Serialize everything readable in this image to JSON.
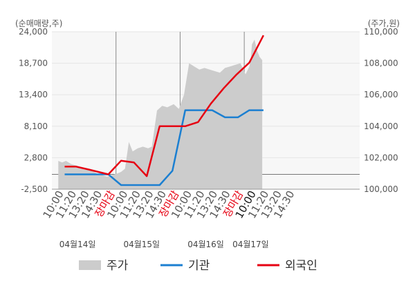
{
  "chart_data": {
    "type": "line",
    "left_unit_label": "(순매매량,주)",
    "right_unit_label": "(주가,원)",
    "left_axis": {
      "ylim": [
        -2500,
        24000
      ],
      "ticks": [
        "24,000",
        "18,700",
        "13,400",
        "8,100",
        "2,800",
        "-2,500"
      ],
      "tick_values": [
        24000,
        18700,
        13400,
        8100,
        2800,
        -2500
      ]
    },
    "right_axis": {
      "ylim": [
        100000,
        110000
      ],
      "ticks": [
        "110,000",
        "108,000",
        "106,000",
        "104,000",
        "102,000",
        "100,000"
      ],
      "tick_values": [
        110000,
        108000,
        106000,
        104000,
        102000,
        100000
      ]
    },
    "x_slots": 24,
    "x_ticks": [
      {
        "slot": 0,
        "label": "10:00",
        "color": "#555555"
      },
      {
        "slot": 1,
        "label": "11:20",
        "color": "#555555"
      },
      {
        "slot": 2,
        "label": "13:20",
        "color": "#555555"
      },
      {
        "slot": 3,
        "label": "14:30",
        "color": "#555555"
      },
      {
        "slot": 4,
        "label": "장마감",
        "color": "#e60012"
      },
      {
        "slot": 5,
        "label": "10:00",
        "color": "#555555"
      },
      {
        "slot": 6,
        "label": "11:20",
        "color": "#555555"
      },
      {
        "slot": 7,
        "label": "13:20",
        "color": "#555555"
      },
      {
        "slot": 8,
        "label": "14:30",
        "color": "#555555"
      },
      {
        "slot": 9,
        "label": "장마감",
        "color": "#e60012"
      },
      {
        "slot": 10,
        "label": "10:00",
        "color": "#555555"
      },
      {
        "slot": 11,
        "label": "11:20",
        "color": "#555555"
      },
      {
        "slot": 12,
        "label": "13:20",
        "color": "#555555"
      },
      {
        "slot": 13,
        "label": "14:30",
        "color": "#555555"
      },
      {
        "slot": 14,
        "label": "장마감",
        "color": "#e60012"
      },
      {
        "slot": 15,
        "label": "10:00",
        "color": "#111111"
      },
      {
        "slot": 16,
        "label": "11:20",
        "color": "#555555"
      },
      {
        "slot": 17,
        "label": "13:20",
        "color": "#555555"
      },
      {
        "slot": 18,
        "label": "14:30",
        "color": "#555555"
      }
    ],
    "dates": [
      {
        "label": "04월14일",
        "slot": 1.5
      },
      {
        "label": "04월15일",
        "slot": 6.5
      },
      {
        "label": "04월16일",
        "slot": 11.5
      },
      {
        "label": "04월17일",
        "slot": 15
      }
    ],
    "day_separators": [
      4.5,
      9.5,
      14.5
    ],
    "series": [
      {
        "name": "주가",
        "type": "area",
        "axis": "right",
        "color": "#cccccc",
        "x": [
          0,
          0.3,
          0.6,
          1.0,
          1.4,
          1.8,
          2.2,
          2.6,
          3.0,
          3.4,
          3.8,
          4.2,
          4.6,
          4.9,
          5.2,
          5.5,
          5.8,
          6.2,
          6.6,
          7.0,
          7.3,
          7.7,
          8.1,
          8.5,
          9.0,
          9.4,
          9.8,
          10.2,
          10.6,
          11.0,
          11.4,
          11.8,
          12.2,
          12.6,
          13.0,
          13.4,
          13.8,
          14.2,
          14.6,
          14.9,
          15.0,
          15.1,
          15.3,
          15.5,
          15.7,
          15.9
        ],
        "values": [
          101.8,
          101.7,
          101.8,
          101.6,
          101.5,
          101.4,
          101.3,
          101.2,
          101.0,
          100.9,
          100.8,
          100.9,
          101.0,
          101.1,
          101.3,
          103.0,
          102.4,
          102.6,
          102.7,
          102.6,
          102.7,
          105.0,
          105.3,
          105.2,
          105.4,
          105.1,
          106.0,
          108.0,
          107.8,
          107.6,
          107.7,
          107.6,
          107.5,
          107.4,
          107.7,
          107.8,
          107.9,
          108.0,
          107.3,
          107.8,
          108.2,
          109.2,
          109.5,
          108.8,
          108.4,
          108.2
        ]
      },
      {
        "name": "기관",
        "type": "line",
        "axis": "left",
        "color": "#1b7fd1",
        "x": [
          0.5,
          3.0,
          3.9,
          4.9,
          6.1,
          7.9,
          8.9,
          9.9,
          11.0,
          12.0,
          13.0,
          14.0,
          14.9,
          16.0
        ],
        "values": [
          0,
          0,
          0,
          -1800,
          -1800,
          -1800,
          600,
          10800,
          10800,
          10800,
          9600,
          9600,
          10800,
          10800
        ]
      },
      {
        "name": "외국인",
        "type": "line",
        "axis": "left",
        "color": "#e60012",
        "x": [
          0.5,
          1.4,
          2.4,
          3.9,
          4.9,
          5.9,
          6.9,
          7.9,
          8.9,
          9.9,
          10.9,
          11.9,
          12.9,
          13.9,
          14.9,
          16.0
        ],
        "values": [
          1300,
          1300,
          800,
          0,
          2300,
          2000,
          -300,
          8100,
          8100,
          8100,
          8800,
          11900,
          14500,
          16800,
          18800,
          23400
        ]
      }
    ],
    "legend": [
      {
        "label": "주가",
        "kind": "area",
        "color": "#cccccc"
      },
      {
        "label": "기관",
        "kind": "line",
        "color": "#1b7fd1"
      },
      {
        "label": "외국인",
        "kind": "line",
        "color": "#e60012"
      }
    ],
    "grid": true
  }
}
